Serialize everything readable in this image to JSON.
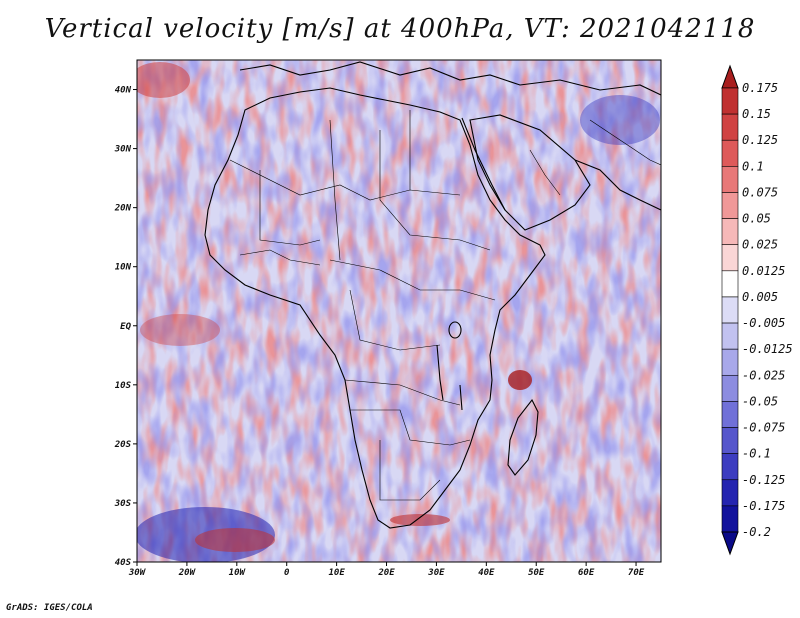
{
  "title": "Vertical velocity [m/s] at 400hPa, VT: 2021042118",
  "credit": "GrADS: IGES/COLA",
  "map": {
    "lon_range": [
      -30,
      75
    ],
    "lat_range": [
      -40,
      45
    ],
    "lat_ticks": [
      {
        "value": 40,
        "label": "40N"
      },
      {
        "value": 30,
        "label": "30N"
      },
      {
        "value": 20,
        "label": "20N"
      },
      {
        "value": 10,
        "label": "10N"
      },
      {
        "value": 0,
        "label": "EQ"
      },
      {
        "value": -10,
        "label": "10S"
      },
      {
        "value": -20,
        "label": "20S"
      },
      {
        "value": -30,
        "label": "30S"
      },
      {
        "value": -40,
        "label": "40S"
      }
    ],
    "lon_ticks": [
      {
        "value": -30,
        "label": "30W"
      },
      {
        "value": -20,
        "label": "20W"
      },
      {
        "value": -10,
        "label": "10W"
      },
      {
        "value": 0,
        "label": "0"
      },
      {
        "value": 10,
        "label": "10E"
      },
      {
        "value": 20,
        "label": "20E"
      },
      {
        "value": 30,
        "label": "30E"
      },
      {
        "value": 40,
        "label": "40E"
      },
      {
        "value": 50,
        "label": "50E"
      },
      {
        "value": 60,
        "label": "60E"
      },
      {
        "value": 70,
        "label": "70E"
      }
    ]
  },
  "colorbar": {
    "levels": [
      "0.175",
      "0.15",
      "0.125",
      "0.1",
      "0.075",
      "0.05",
      "0.025",
      "0.0125",
      "0.005",
      "-0.005",
      "-0.0125",
      "-0.025",
      "-0.05",
      "-0.075",
      "-0.1",
      "-0.125",
      "-0.175",
      "-0.2"
    ],
    "colors": [
      "#a81e1e",
      "#c03030",
      "#d04242",
      "#de5a5a",
      "#e87878",
      "#f09898",
      "#f6b8b8",
      "#fad6d6",
      "#ffffff",
      "#dcdcf6",
      "#c2c2f0",
      "#a8a8ea",
      "#8c8ce0",
      "#7070d8",
      "#5656cc",
      "#3c3cc0",
      "#2424b0",
      "#12129c",
      "#0a0a88"
    ]
  }
}
